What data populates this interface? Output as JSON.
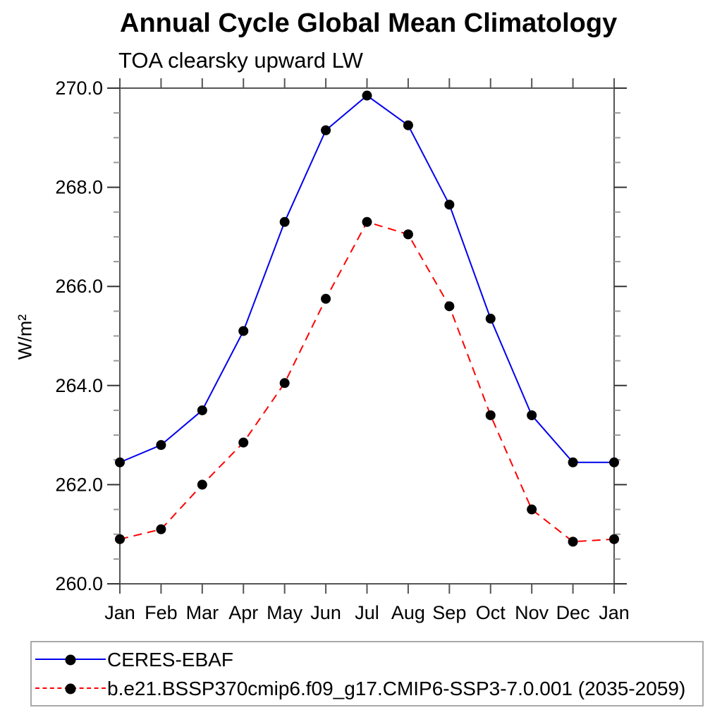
{
  "title": "Annual Cycle Global Mean Climatology",
  "subtitle": "TOA clearsky upward LW",
  "chart_data": {
    "type": "line",
    "categories": [
      "Jan",
      "Feb",
      "Mar",
      "Apr",
      "May",
      "Jun",
      "Jul",
      "Aug",
      "Sep",
      "Oct",
      "Nov",
      "Dec",
      "Jan"
    ],
    "series": [
      {
        "name": "CERES-EBAF",
        "values": [
          262.45,
          262.8,
          263.5,
          265.1,
          267.3,
          269.15,
          269.85,
          269.25,
          267.65,
          265.35,
          263.4,
          262.45,
          262.45
        ],
        "line_color": "#0000ee",
        "line_style": "solid",
        "marker": "filled-circle",
        "marker_color": "#000000"
      },
      {
        "name": "b.e21.BSSP370cmip6.f09_g17.CMIP6-SSP3-7.0.001 (2035-2059)",
        "values": [
          260.9,
          261.1,
          262.0,
          262.85,
          264.05,
          265.75,
          267.3,
          267.05,
          265.6,
          263.4,
          261.5,
          260.85,
          260.9
        ],
        "line_color": "#ff0000",
        "line_style": "dashed",
        "marker": "filled-circle",
        "marker_color": "#000000"
      }
    ],
    "xlabel": "",
    "ylabel": "W/m²",
    "ylim": [
      260.0,
      270.0
    ],
    "ytick_major_values": [
      260.0,
      262.0,
      264.0,
      266.0,
      268.0,
      270.0
    ],
    "ytick_major_labels": [
      "260.0",
      "262.0",
      "264.0",
      "266.0",
      "268.0",
      "270.0"
    ],
    "ytick_minor_step": 0.5,
    "grid": false,
    "legend_position": "bottom-left-box"
  }
}
